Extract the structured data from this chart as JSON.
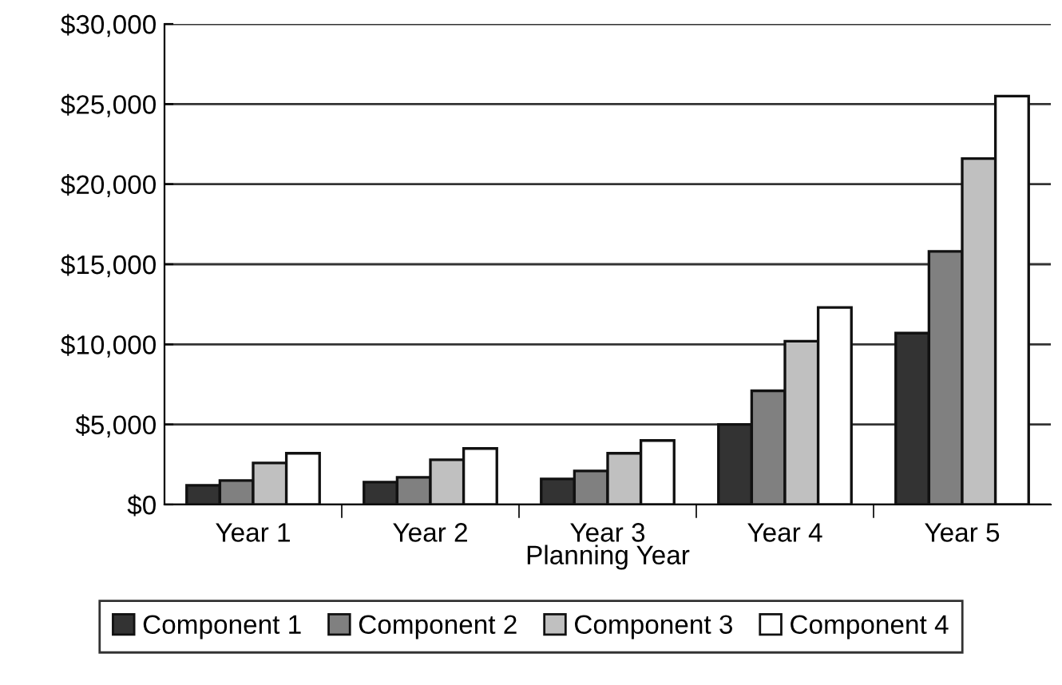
{
  "chart_data": {
    "type": "bar",
    "xlabel": "Planning Year",
    "categories": [
      "Year 1",
      "Year 2",
      "Year 3",
      "Year 4",
      "Year 5"
    ],
    "series": [
      {
        "name": "Component 1",
        "color": "#333333",
        "values": [
          1200,
          1400,
          1600,
          5000,
          10700
        ]
      },
      {
        "name": "Component 2",
        "color": "#808080",
        "values": [
          1500,
          1700,
          2100,
          7100,
          15800
        ]
      },
      {
        "name": "Component 3",
        "color": "#c0c0c0",
        "values": [
          2600,
          2800,
          3200,
          10200,
          21600
        ]
      },
      {
        "name": "Component 4",
        "color": "#ffffff",
        "values": [
          3200,
          3500,
          4000,
          12300,
          25500
        ]
      }
    ],
    "ylim": [
      0,
      30000
    ],
    "yticks": [
      {
        "value": 0,
        "label": "$0"
      },
      {
        "value": 5000,
        "label": "$5,000"
      },
      {
        "value": 10000,
        "label": "$10,000"
      },
      {
        "value": 15000,
        "label": "$15,000"
      },
      {
        "value": 20000,
        "label": "$20,000"
      },
      {
        "value": 25000,
        "label": "$25,000"
      },
      {
        "value": 30000,
        "label": "$30,000"
      }
    ],
    "grid": "y",
    "legend": "bottom"
  }
}
